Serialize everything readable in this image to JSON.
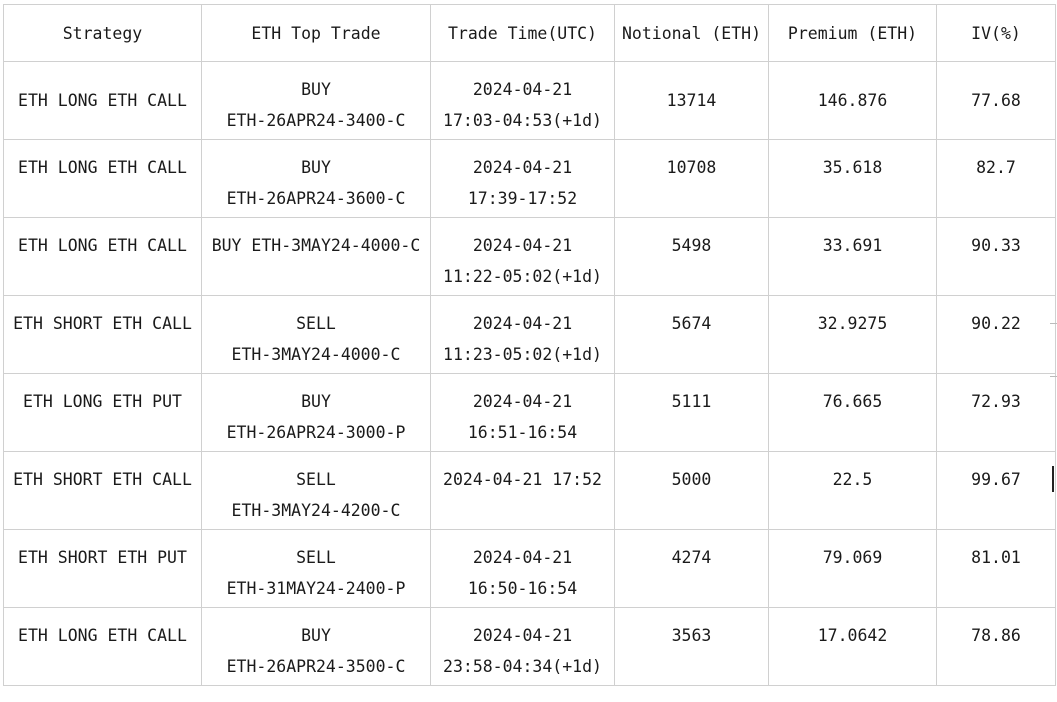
{
  "table": {
    "headers": {
      "strategy": "Strategy",
      "top_trade": "ETH Top Trade",
      "trade_time": "Trade Time(UTC)",
      "notional": "Notional (ETH)",
      "premium": "Premium (ETH)",
      "iv": "IV(%)"
    },
    "rows": [
      {
        "strategy": "ETH LONG ETH CALL",
        "trade_l1": "BUY",
        "trade_l2": "ETH-26APR24-3400-C",
        "time_l1": "2024-04-21",
        "time_l2": "17:03-04:53(+1d)",
        "notional": "13714",
        "premium": "146.876",
        "iv": "77.68"
      },
      {
        "strategy": "ETH LONG ETH CALL",
        "trade_l1": "BUY",
        "trade_l2": "ETH-26APR24-3600-C",
        "time_l1": "2024-04-21",
        "time_l2": "17:39-17:52",
        "notional": "10708",
        "premium": "35.618",
        "iv": "82.7"
      },
      {
        "strategy": "ETH LONG ETH CALL",
        "trade_l1": "BUY ETH-3MAY24-4000-C",
        "trade_l2": "",
        "time_l1": "2024-04-21",
        "time_l2": "11:22-05:02(+1d)",
        "notional": "5498",
        "premium": "33.691",
        "iv": "90.33"
      },
      {
        "strategy": "ETH SHORT ETH CALL",
        "trade_l1": "SELL",
        "trade_l2": "ETH-3MAY24-4000-C",
        "time_l1": "2024-04-21",
        "time_l2": "11:23-05:02(+1d)",
        "notional": "5674",
        "premium": "32.9275",
        "iv": "90.22"
      },
      {
        "strategy": "ETH LONG ETH PUT",
        "trade_l1": "BUY",
        "trade_l2": "ETH-26APR24-3000-P",
        "time_l1": "2024-04-21",
        "time_l2": "16:51-16:54",
        "notional": "5111",
        "premium": "76.665",
        "iv": "72.93"
      },
      {
        "strategy": "ETH SHORT ETH CALL",
        "trade_l1": "SELL",
        "trade_l2": "ETH-3MAY24-4200-C",
        "time_l1": "2024-04-21 17:52",
        "time_l2": "",
        "notional": "5000",
        "premium": "22.5",
        "iv": "99.67"
      },
      {
        "strategy": "ETH SHORT ETH PUT",
        "trade_l1": "SELL",
        "trade_l2": "ETH-31MAY24-2400-P",
        "time_l1": "2024-04-21",
        "time_l2": "16:50-16:54",
        "notional": "4274",
        "premium": "79.069",
        "iv": "81.01"
      },
      {
        "strategy": "ETH LONG ETH CALL",
        "trade_l1": "BUY",
        "trade_l2": "ETH-26APR24-3500-C",
        "time_l1": "2024-04-21",
        "time_l2": "23:58-04:34(+1d)",
        "notional": "3563",
        "premium": "17.0642",
        "iv": "78.86"
      }
    ]
  }
}
